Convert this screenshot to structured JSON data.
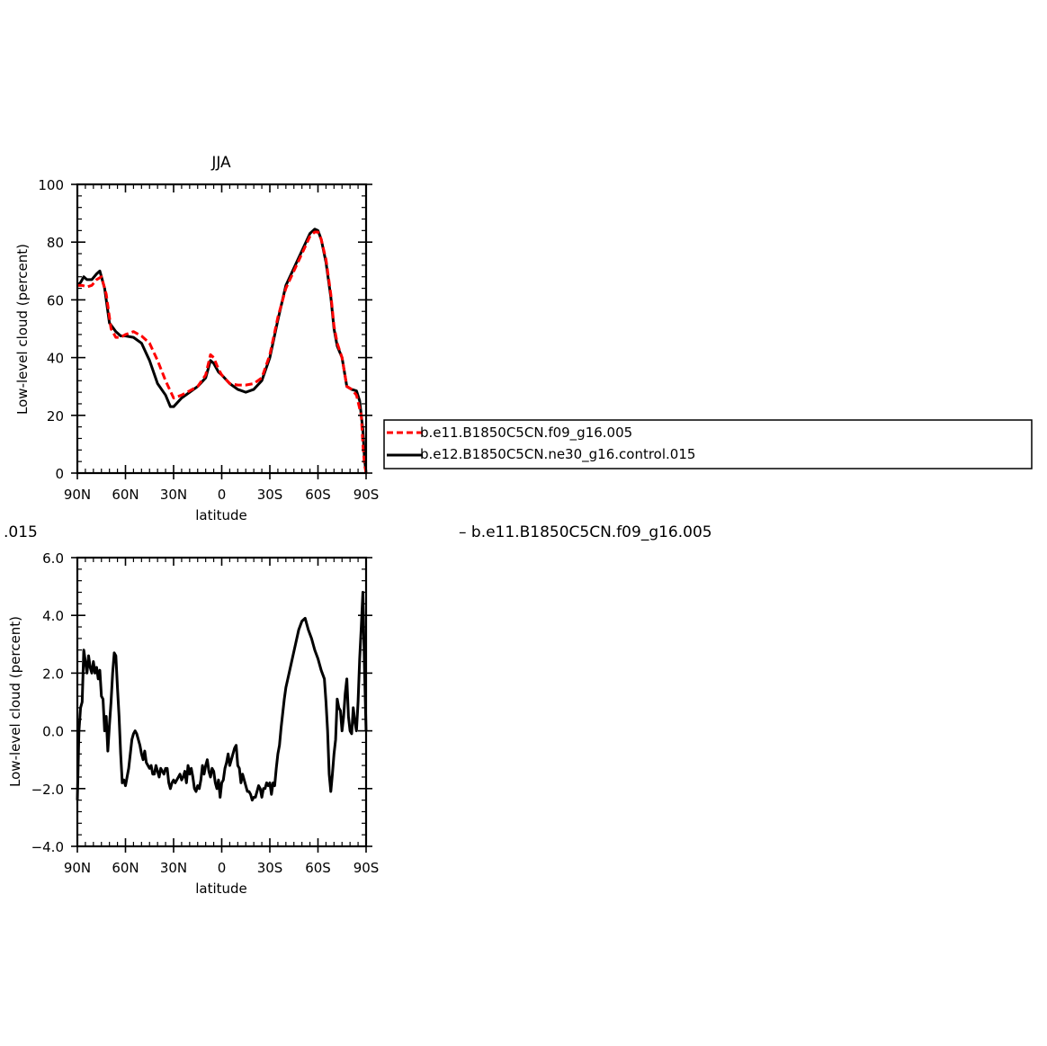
{
  "chart_data": [
    {
      "type": "line",
      "title": "JJA",
      "xlabel": "latitude",
      "ylabel": "Low-level cloud (percent)",
      "xlim": [
        -90,
        90
      ],
      "ylim": [
        0,
        100
      ],
      "x_tick_values": [
        -90,
        -60,
        -30,
        0,
        30,
        60,
        90
      ],
      "x_tick_labels": [
        "90N",
        "60N",
        "30N",
        "0",
        "30S",
        "60S",
        "90S"
      ],
      "y_tick_values": [
        0,
        20,
        40,
        60,
        80,
        100
      ],
      "y_tick_labels": [
        "0",
        "20",
        "40",
        "60",
        "80",
        "100"
      ],
      "legend": {
        "position": "right",
        "entries": [
          "b.e11.B1850C5CN.f09_g16.005",
          "b.e12.B1850C5CN.ne30_g16.control.015"
        ]
      },
      "series": [
        {
          "name": "b.e11.B1850C5CN.f09_g16.005",
          "color": "#ff0000",
          "dash": "dashed",
          "x": [
            -90,
            -87,
            -84,
            -81,
            -78,
            -75,
            -72,
            -69,
            -66,
            -63,
            -60,
            -55,
            -50,
            -45,
            -40,
            -35,
            -30,
            -25,
            -20,
            -15,
            -10,
            -7,
            -5,
            -2,
            0,
            5,
            10,
            15,
            20,
            25,
            30,
            35,
            40,
            45,
            50,
            55,
            58,
            60,
            62,
            65,
            68,
            70,
            72,
            75,
            78,
            81,
            84,
            87,
            88,
            89,
            90
          ],
          "y": [
            65,
            65,
            64.5,
            65,
            67,
            68,
            62,
            50,
            47,
            47,
            48,
            49,
            47.5,
            45,
            39,
            32,
            26,
            27,
            28.5,
            30,
            34,
            41,
            40,
            36,
            34,
            31,
            30.5,
            30.5,
            31,
            33,
            41,
            54,
            64,
            70,
            76,
            82,
            83.5,
            83.5,
            81,
            74,
            62,
            51,
            45,
            40,
            30,
            29,
            27,
            20,
            10,
            3,
            0
          ]
        },
        {
          "name": "b.e12.B1850C5CN.ne30_g16.control.015",
          "color": "#000000",
          "dash": "solid",
          "x": [
            -90,
            -88,
            -86,
            -84,
            -81,
            -78,
            -76,
            -73,
            -70,
            -66,
            -63,
            -60,
            -55,
            -50,
            -45,
            -40,
            -35,
            -32,
            -30,
            -25,
            -20,
            -15,
            -10,
            -7,
            -5,
            -2,
            0,
            5,
            10,
            15,
            20,
            25,
            30,
            35,
            40,
            45,
            50,
            55,
            58,
            60,
            62,
            65,
            68,
            70,
            72,
            75,
            78,
            81,
            84,
            86,
            88,
            89,
            90
          ],
          "y": [
            65,
            66,
            68,
            67,
            67,
            69,
            70,
            64,
            52,
            49,
            47.5,
            47.5,
            47,
            45,
            39,
            31,
            27,
            23,
            23,
            26,
            28,
            30,
            33,
            39,
            38,
            35,
            34,
            31,
            29,
            28,
            29,
            32,
            40,
            53,
            65,
            71,
            77,
            83,
            84.5,
            84,
            81,
            73,
            61,
            50,
            44,
            40,
            30,
            29,
            28.5,
            25,
            15,
            5,
            0
          ]
        }
      ]
    },
    {
      "type": "line",
      "title_fragment_left": ".015",
      "title_fragment_right": "– b.e11.B1850C5CN.f09_g16.005",
      "xlabel": "latitude",
      "ylabel": "Low-level cloud (percent)",
      "xlim": [
        -90,
        90
      ],
      "ylim": [
        -4,
        6
      ],
      "x_tick_values": [
        -90,
        -60,
        -30,
        0,
        30,
        60,
        90
      ],
      "x_tick_labels": [
        "90N",
        "60N",
        "30N",
        "0",
        "30S",
        "60S",
        "90S"
      ],
      "y_tick_values": [
        -4,
        -2,
        0,
        2,
        4,
        6
      ],
      "y_tick_labels": [
        "−4.0",
        "−2.0",
        "0.0",
        "2.0",
        "4.0",
        "6.0"
      ],
      "series": [
        {
          "color": "#000000",
          "dash": "solid",
          "x": [
            -90,
            -89,
            -88,
            -87,
            -86,
            -85,
            -84,
            -83,
            -82,
            -81,
            -80,
            -79,
            -78,
            -77,
            -76,
            -75,
            -74,
            -73,
            -72,
            -71,
            -70,
            -69,
            -68,
            -67,
            -66,
            -65,
            -64,
            -63,
            -62,
            -61,
            -60,
            -59,
            -58,
            -57,
            -56,
            -55,
            -54,
            -53,
            -52,
            -51,
            -50,
            -49,
            -48,
            -47,
            -46,
            -45,
            -44,
            -43,
            -42,
            -41,
            -40,
            -39,
            -38,
            -37,
            -36,
            -35,
            -34,
            -33,
            -32,
            -31,
            -30,
            -29,
            -28,
            -27,
            -26,
            -25,
            -24,
            -23,
            -22,
            -21,
            -20,
            -19,
            -18,
            -17,
            -16,
            -15,
            -14,
            -13,
            -12,
            -11,
            -10,
            -9,
            -8,
            -7,
            -6,
            -5,
            -4,
            -3,
            -2,
            -1,
            0,
            1,
            2,
            3,
            4,
            5,
            6,
            7,
            8,
            9,
            10,
            11,
            12,
            13,
            14,
            15,
            16,
            17,
            18,
            19,
            20,
            21,
            22,
            23,
            24,
            25,
            26,
            27,
            28,
            29,
            30,
            31,
            32,
            33,
            34,
            35,
            36,
            37,
            38,
            39,
            40,
            42,
            44,
            46,
            48,
            50,
            52,
            54,
            56,
            58,
            60,
            62,
            64,
            65,
            66,
            67,
            68,
            69,
            70,
            71,
            72,
            73,
            74,
            75,
            76,
            77,
            78,
            79,
            80,
            81,
            82,
            83,
            84,
            85,
            86,
            87,
            88,
            89,
            90
          ],
          "y": [
            -2.4,
            0.0,
            0.8,
            1.0,
            2.8,
            2.4,
            2.0,
            2.6,
            2.2,
            2.0,
            2.4,
            2.0,
            2.2,
            1.8,
            2.1,
            1.2,
            1.1,
            0.0,
            0.5,
            -0.7,
            0.2,
            1.0,
            2.0,
            2.7,
            2.6,
            1.5,
            0.5,
            -0.8,
            -1.8,
            -1.7,
            -1.9,
            -1.6,
            -1.3,
            -0.8,
            -0.3,
            -0.1,
            0.0,
            -0.1,
            -0.3,
            -0.5,
            -0.8,
            -1.0,
            -0.7,
            -1.1,
            -1.2,
            -1.3,
            -1.2,
            -1.5,
            -1.5,
            -1.2,
            -1.4,
            -1.6,
            -1.3,
            -1.4,
            -1.5,
            -1.3,
            -1.3,
            -1.8,
            -2.0,
            -1.8,
            -1.7,
            -1.8,
            -1.7,
            -1.6,
            -1.5,
            -1.7,
            -1.6,
            -1.4,
            -1.8,
            -1.2,
            -1.5,
            -1.3,
            -1.6,
            -2.0,
            -2.1,
            -1.9,
            -2.0,
            -1.7,
            -1.2,
            -1.5,
            -1.2,
            -1.0,
            -1.4,
            -1.6,
            -1.3,
            -1.4,
            -1.8,
            -2.0,
            -1.7,
            -2.3,
            -1.8,
            -1.7,
            -1.3,
            -1.1,
            -0.8,
            -1.2,
            -1.0,
            -0.8,
            -0.6,
            -0.5,
            -1.2,
            -1.3,
            -1.8,
            -1.5,
            -1.7,
            -1.9,
            -2.1,
            -2.1,
            -2.2,
            -2.4,
            -2.3,
            -2.3,
            -2.1,
            -1.9,
            -2.0,
            -2.3,
            -2.0,
            -2.0,
            -1.8,
            -1.9,
            -1.8,
            -2.2,
            -1.8,
            -1.9,
            -1.3,
            -0.8,
            -0.5,
            0.1,
            0.6,
            1.1,
            1.5,
            2.0,
            2.5,
            3.0,
            3.5,
            3.8,
            3.9,
            3.5,
            3.2,
            2.8,
            2.5,
            2.1,
            1.8,
            1.0,
            0.0,
            -1.5,
            -2.1,
            -1.5,
            -0.8,
            -0.3,
            1.1,
            0.8,
            0.7,
            0.0,
            0.5,
            1.3,
            1.8,
            0.5,
            0.0,
            -0.1,
            0.8,
            0.3,
            0.0,
            1.0,
            2.5,
            3.6,
            4.8,
            2.2,
            0.0
          ]
        }
      ]
    }
  ]
}
